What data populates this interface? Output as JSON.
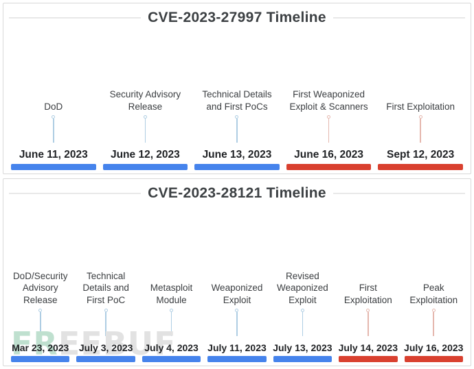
{
  "colors": {
    "bar_blue": "#4583EC",
    "bar_red": "#D9402F",
    "connector_blue": "#AECDE3",
    "connector_red": "#E5B7AE",
    "title": "#3C4043",
    "label": "#3A3D40",
    "date": "#1F2124",
    "panel_border": "#D8D8D8",
    "rule": "#E8E8E8",
    "watermark_green": "#BFE0CF",
    "watermark_gray": "#E2E2E2"
  },
  "watermark": {
    "prefix": "FR",
    "suffix": "EEBUF"
  },
  "timelines": [
    {
      "title": "CVE-2023-27997 Timeline",
      "events": [
        {
          "label": "DoD",
          "date": "June 11, 2023",
          "color": "blue"
        },
        {
          "label": "Security Advisory Release",
          "date": "June 12, 2023",
          "color": "blue"
        },
        {
          "label": "Technical Details and First PoCs",
          "date": "June 13, 2023",
          "color": "blue"
        },
        {
          "label": "First Weaponized Exploit & Scanners",
          "date": "June 16, 2023",
          "color": "red"
        },
        {
          "label": "First Exploitation",
          "date": "Sept 12, 2023",
          "color": "red"
        }
      ]
    },
    {
      "title": "CVE-2023-28121 Timeline",
      "events": [
        {
          "label": "DoD/Security Advisory Release",
          "date": "Mar 23, 2023",
          "color": "blue"
        },
        {
          "label": "Technical Details and First PoC",
          "date": "July 3, 2023",
          "color": "blue"
        },
        {
          "label": "Metasploit Module",
          "date": "July 4, 2023",
          "color": "blue"
        },
        {
          "label": "Weaponized Exploit",
          "date": "July 11, 2023",
          "color": "blue"
        },
        {
          "label": "Revised Weaponized Exploit",
          "date": "July 13, 2023",
          "color": "blue"
        },
        {
          "label": "First Exploitation",
          "date": "July 14, 2023",
          "color": "red"
        },
        {
          "label": "Peak Exploitation",
          "date": "July 16, 2023",
          "color": "red"
        }
      ]
    }
  ]
}
